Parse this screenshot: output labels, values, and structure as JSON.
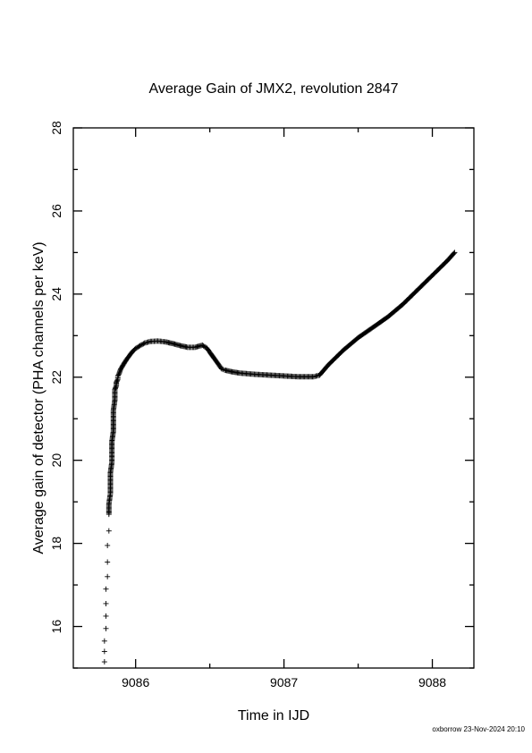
{
  "chart_data": {
    "type": "scatter",
    "title": "Average Gain of JMX2, revolution 2847",
    "xlabel": "Time in IJD",
    "ylabel": "Average gain of detector (PHA channels per keV)",
    "xlim": [
      9085.58,
      9088.28
    ],
    "ylim": [
      15,
      28
    ],
    "xticks": [
      9086,
      9087,
      9088
    ],
    "yticks": [
      16,
      18,
      20,
      22,
      24,
      26,
      28
    ],
    "grid": false,
    "marker": "plus",
    "series": [
      {
        "x": [
          9085.79,
          9085.79,
          9085.79,
          9085.8,
          9085.8,
          9085.8,
          9085.8,
          9085.81,
          9085.81,
          9085.81,
          9085.82,
          9085.82,
          9085.82,
          9085.83,
          9085.83,
          9085.83,
          9085.84,
          9085.84,
          9085.84,
          9085.85,
          9085.85,
          9085.85,
          9085.86,
          9085.86,
          9085.87,
          9085.87,
          9085.88,
          9085.88,
          9085.89,
          9085.9,
          9085.92,
          9085.94,
          9085.96,
          9085.98,
          9086.0,
          9086.03,
          9086.06,
          9086.1,
          9086.15,
          9086.2,
          9086.25,
          9086.3,
          9086.35,
          9086.4,
          9086.45,
          9086.48,
          9086.5,
          9086.53,
          9086.56,
          9086.58,
          9086.6,
          9086.65,
          9086.7,
          9086.8,
          9086.9,
          9087.0,
          9087.1,
          9087.2,
          9087.24,
          9087.3,
          9087.4,
          9087.5,
          9087.6,
          9087.7,
          9087.8,
          9087.9,
          9088.0,
          9088.1,
          9088.15
        ],
        "y": [
          15.15,
          15.4,
          15.65,
          15.95,
          16.25,
          16.55,
          16.9,
          17.2,
          17.55,
          17.95,
          18.3,
          18.7,
          18.95,
          19.2,
          19.45,
          19.7,
          19.95,
          20.2,
          20.45,
          20.7,
          20.95,
          21.2,
          21.45,
          21.7,
          21.8,
          21.88,
          21.95,
          22.02,
          22.1,
          22.2,
          22.32,
          22.43,
          22.53,
          22.62,
          22.69,
          22.76,
          22.82,
          22.86,
          22.87,
          22.85,
          22.81,
          22.76,
          22.72,
          22.72,
          22.77,
          22.7,
          22.6,
          22.45,
          22.3,
          22.2,
          22.17,
          22.13,
          22.1,
          22.07,
          22.05,
          22.03,
          22.01,
          22.01,
          22.05,
          22.3,
          22.65,
          22.95,
          23.2,
          23.45,
          23.75,
          24.1,
          24.45,
          24.8,
          25.0
        ]
      }
    ]
  },
  "footer": {
    "stamp": "oxborrow 23-Nov-2024 20:10"
  }
}
